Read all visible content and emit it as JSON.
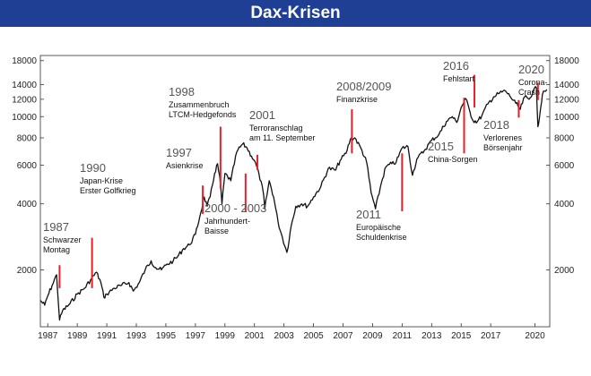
{
  "chart_data": {
    "type": "line",
    "title": "Dax-Krisen",
    "xlabel": "",
    "ylabel": "",
    "y_scale": "log",
    "ylim": [
      1100,
      19000
    ],
    "xlim": [
      1986.5,
      2021.0
    ],
    "y_ticks": [
      2000,
      4000,
      6000,
      8000,
      10000,
      12000,
      14000,
      18000
    ],
    "y_tick_labels": [
      "2000",
      "4000",
      "6000",
      "8000",
      "10000",
      "12000",
      "14000",
      "18000"
    ],
    "x_ticks": [
      1987,
      1989,
      1991,
      1993,
      1995,
      1997,
      1999,
      2001,
      2003,
      2005,
      2007,
      2009,
      2011,
      2013,
      2015,
      2017,
      2020
    ],
    "x_tick_labels": [
      "1987",
      "1989",
      "1991",
      "1993",
      "1995",
      "1997",
      "1999",
      "2001",
      "2003",
      "2005",
      "2007",
      "2009",
      "2011",
      "2013",
      "2015",
      "2017",
      "2020"
    ],
    "grid": false,
    "accent_color": "#1f3f94",
    "marker_color": "#e8202a",
    "series": [
      {
        "name": "",
        "color": "#111111",
        "x": [
          1986.5,
          1986.8,
          1987.0,
          1987.3,
          1987.6,
          1987.8,
          1988.0,
          1988.5,
          1989.0,
          1989.5,
          1989.9,
          1990.3,
          1990.6,
          1990.8,
          1991.0,
          1991.5,
          1992.0,
          1992.5,
          1992.8,
          1993.2,
          1993.6,
          1994.0,
          1994.3,
          1994.7,
          1995.0,
          1995.5,
          1995.8,
          1996.2,
          1996.6,
          1997.0,
          1997.3,
          1997.6,
          1997.8,
          1998.0,
          1998.3,
          1998.5,
          1998.7,
          1998.8,
          1999.0,
          1999.4,
          1999.8,
          2000.2,
          2000.5,
          2000.8,
          2001.0,
          2001.3,
          2001.6,
          2001.7,
          2002.0,
          2002.3,
          2002.6,
          2002.9,
          2003.2,
          2003.5,
          2003.8,
          2004.2,
          2004.6,
          2005.0,
          2005.5,
          2006.0,
          2006.5,
          2006.8,
          2007.2,
          2007.5,
          2007.8,
          2008.2,
          2008.6,
          2008.9,
          2009.2,
          2009.6,
          2009.9,
          2010.3,
          2010.6,
          2011.0,
          2011.4,
          2011.7,
          2012.0,
          2012.5,
          2013.0,
          2013.5,
          2014.0,
          2014.4,
          2014.7,
          2015.0,
          2015.3,
          2015.6,
          2015.8,
          2016.1,
          2016.4,
          2016.8,
          2017.2,
          2017.6,
          2018.0,
          2018.3,
          2018.7,
          2019.0,
          2019.3,
          2019.6,
          2019.9,
          2020.1,
          2020.2,
          2020.35,
          2020.5,
          2020.8
        ],
        "y": [
          1450,
          1380,
          1520,
          1700,
          1900,
          1180,
          1300,
          1400,
          1550,
          1650,
          1800,
          1950,
          1750,
          1500,
          1550,
          1650,
          1700,
          1750,
          1600,
          1750,
          2000,
          2200,
          2050,
          2000,
          2100,
          2200,
          2300,
          2500,
          2600,
          2900,
          3500,
          4300,
          3900,
          4300,
          5500,
          6100,
          4900,
          4000,
          5500,
          5100,
          6900,
          7500,
          7200,
          6600,
          6300,
          5500,
          4500,
          3800,
          5100,
          4300,
          3300,
          2800,
          2400,
          3200,
          3900,
          4000,
          3900,
          4300,
          4800,
          5800,
          5700,
          6300,
          6800,
          7900,
          8000,
          7200,
          6200,
          4500,
          3800,
          5000,
          5900,
          6100,
          6200,
          7200,
          7300,
          5400,
          6400,
          7000,
          7800,
          8300,
          9500,
          10000,
          9400,
          11000,
          12100,
          10500,
          9600,
          9500,
          10100,
          11400,
          12300,
          12800,
          13100,
          12400,
          11500,
          10800,
          12300,
          12000,
          13200,
          13500,
          9000,
          10500,
          12600,
          13300
        ]
      }
    ],
    "annotations": [
      {
        "year": "1987",
        "lines": [
          "Schwarzer",
          "Montag"
        ],
        "x": 1987.8,
        "y_top": 2100,
        "y_bottom": 1650
      },
      {
        "year": "1990",
        "lines": [
          "Japan-Krise",
          "Erster Golfkrieg"
        ],
        "x": 1990.0,
        "y_top": 2800,
        "y_bottom": 1650
      },
      {
        "year": "1997",
        "lines": [
          "Asienkrise"
        ],
        "x": 1997.5,
        "y_top": 4850,
        "y_bottom": 3600
      },
      {
        "year": "1998",
        "lines": [
          "Zusammenbruch",
          "LTCM-Hedgefonds"
        ],
        "x": 1998.7,
        "y_top": 9000,
        "y_bottom": 4700
      },
      {
        "year": "2000 - 2003",
        "lines": [
          "Jahrhundert-",
          "Baisse"
        ],
        "x": 2000.4,
        "y_top": 5500,
        "y_bottom": 3700
      },
      {
        "year": "2001",
        "lines": [
          "Terroranschlag",
          "am 11. September"
        ],
        "x": 2001.2,
        "y_top": 6700,
        "y_bottom": 5700
      },
      {
        "year": "2008/2009",
        "lines": [
          "Finanzkrise"
        ],
        "x": 2007.6,
        "y_top": 10800,
        "y_bottom": 6800
      },
      {
        "year": "2011",
        "lines": [
          "Europäische",
          "Schuldenkrise"
        ],
        "x": 2011.0,
        "y_top": 6800,
        "y_bottom": 3700
      },
      {
        "year": "2015",
        "lines": [
          "China-Sorgen"
        ],
        "x": 2015.2,
        "y_top": 12200,
        "y_bottom": 6800
      },
      {
        "year": "2016",
        "lines": [
          "Fehlstart"
        ],
        "x": 2015.9,
        "y_top": 15500,
        "y_bottom": 11000
      },
      {
        "year": "2018",
        "lines": [
          "Verlorenes",
          "Börsenjahr"
        ],
        "x": 2018.9,
        "y_top": 11900,
        "y_bottom": 9900
      },
      {
        "year": "2020",
        "lines": [
          "Corona-",
          "Crash"
        ],
        "x": 2020.2,
        "y_top": 14300,
        "y_bottom": 11900
      }
    ]
  }
}
